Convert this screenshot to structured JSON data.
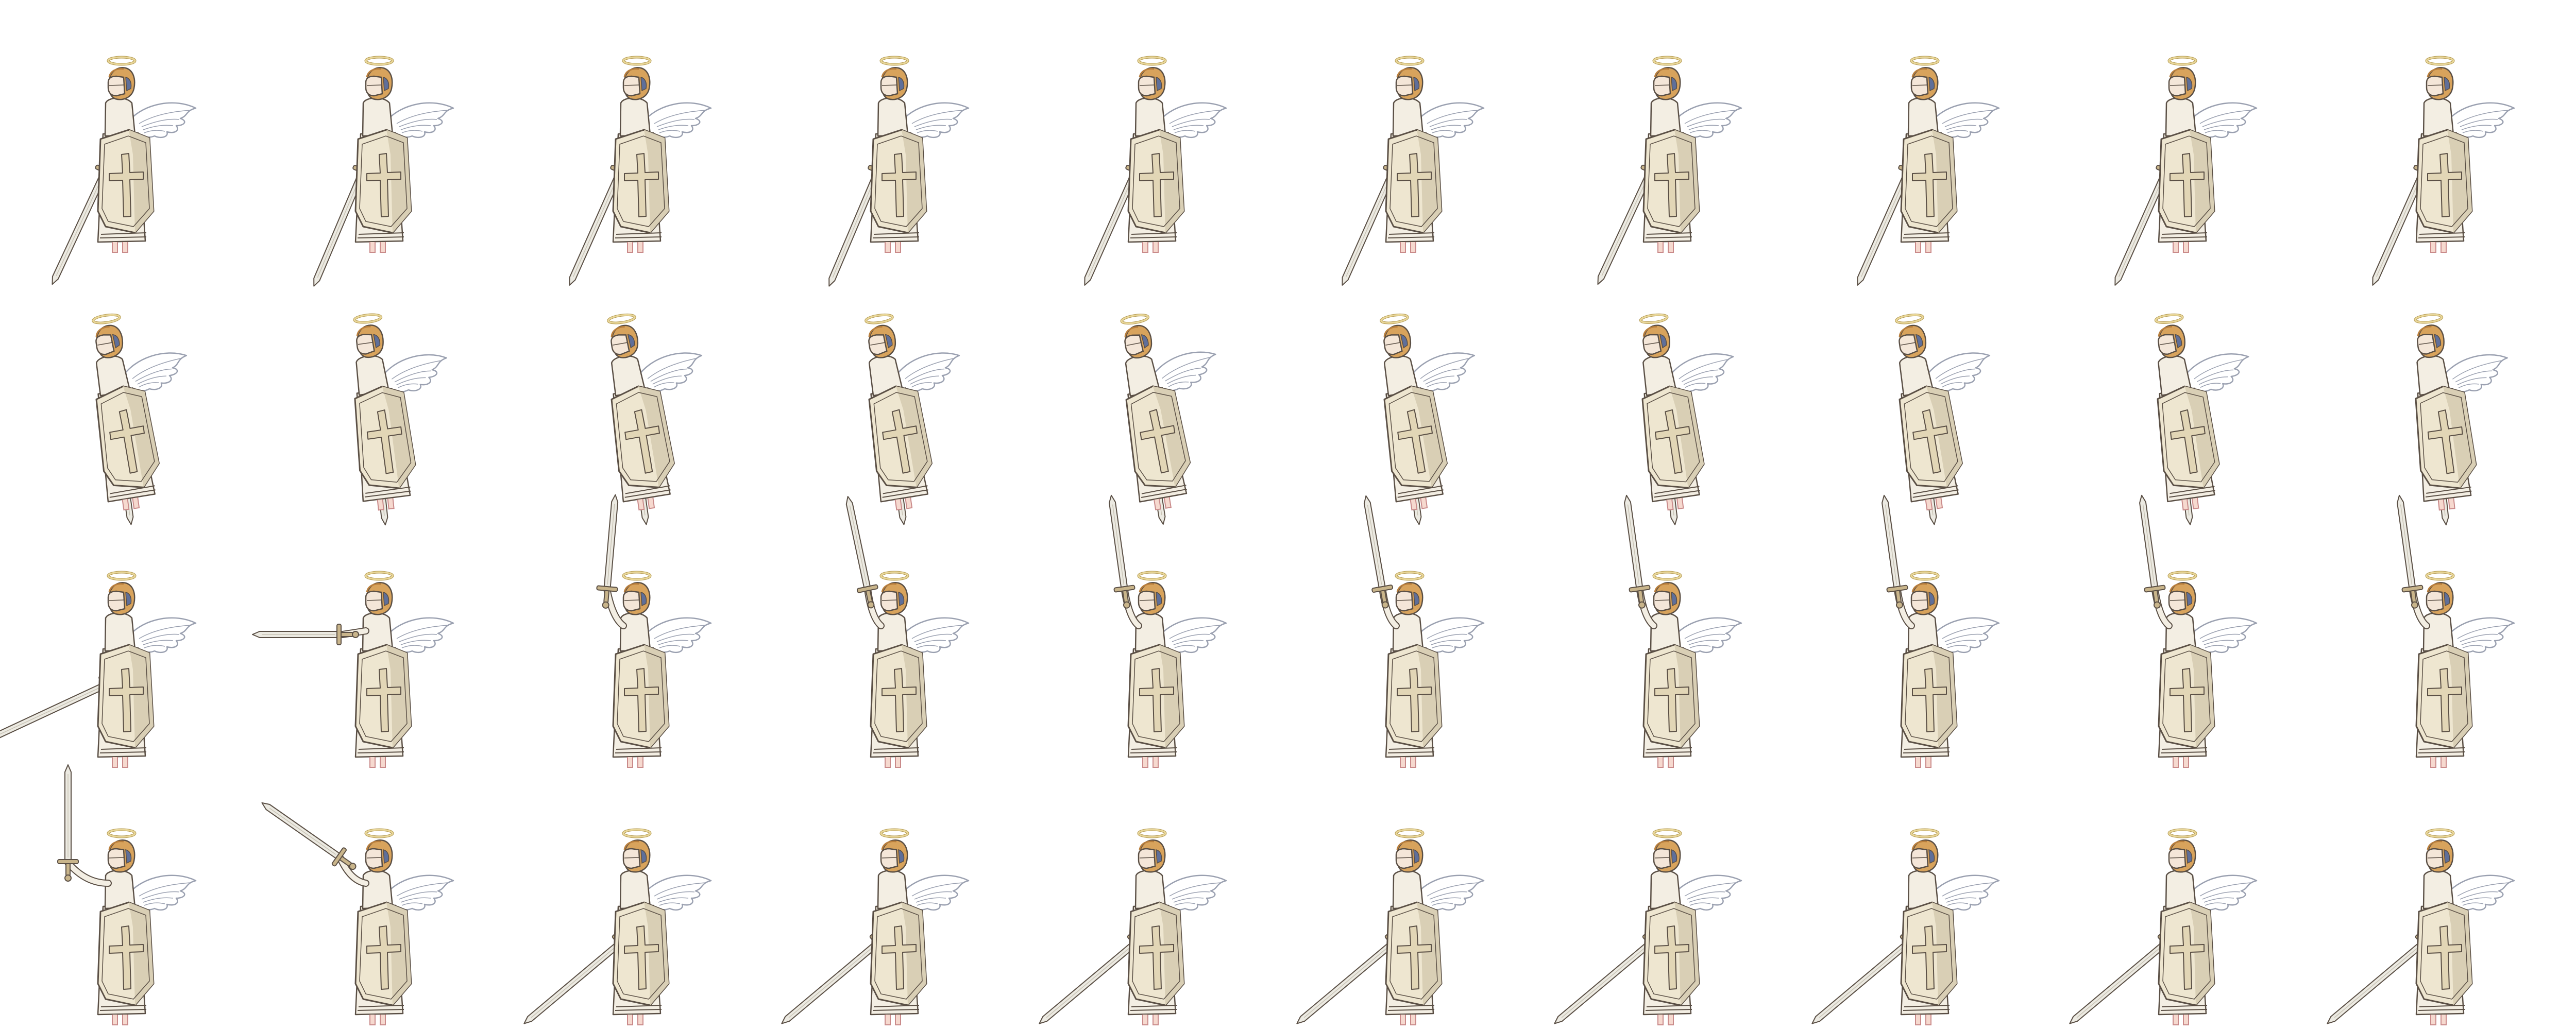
{
  "sprite_sheet": {
    "columns": 10,
    "rows": 4,
    "colors": {
      "background": "#ffffff",
      "outline": "#5a4f45",
      "halo": "#e9d79a",
      "halo_outline": "#b59c55",
      "hair": "#d8a35c",
      "hair_shadow": "#b87e3c",
      "helmet_band": "#5f6f9a",
      "face": "#f4e6d8",
      "skin": "#f6d9cf",
      "shield": "#eee6d0",
      "shield_shade": "#d9cfb5",
      "cross": "#e2d6b6",
      "robe": "#f3eee3",
      "wing": "#ffffff",
      "wing_line": "#9aa0b0",
      "blade": "#eceae2",
      "hilt": "#c9b58b",
      "feet_line": "#c98a8a"
    },
    "rows_frames": [
      {
        "frames": [
          {
            "pose": "sword-low",
            "sword_angle": 205,
            "lean": 0
          },
          {
            "pose": "sword-low",
            "sword_angle": 203,
            "lean": 0
          },
          {
            "pose": "sword-low",
            "sword_angle": 204,
            "lean": 0
          },
          {
            "pose": "sword-low",
            "sword_angle": 203,
            "lean": 0
          },
          {
            "pose": "sword-low",
            "sword_angle": 204,
            "lean": 0
          },
          {
            "pose": "sword-low",
            "sword_angle": 204,
            "lean": 0
          },
          {
            "pose": "sword-low",
            "sword_angle": 205,
            "lean": 0
          },
          {
            "pose": "sword-low",
            "sword_angle": 204,
            "lean": 0
          },
          {
            "pose": "sword-low",
            "sword_angle": 204,
            "lean": 0
          },
          {
            "pose": "sword-low",
            "sword_angle": 204,
            "lean": 0
          }
        ]
      },
      {
        "frames": [
          {
            "pose": "sword-down",
            "sword_angle": 180,
            "lean": -8
          },
          {
            "pose": "sword-down",
            "sword_angle": 180,
            "lean": -6
          },
          {
            "pose": "sword-down",
            "sword_angle": 180,
            "lean": -8
          },
          {
            "pose": "sword-down",
            "sword_angle": 180,
            "lean": -8
          },
          {
            "pose": "sword-down",
            "sword_angle": 180,
            "lean": -9
          },
          {
            "pose": "sword-down",
            "sword_angle": 180,
            "lean": -8
          },
          {
            "pose": "sword-down",
            "sword_angle": 180,
            "lean": -7
          },
          {
            "pose": "sword-down",
            "sword_angle": 180,
            "lean": -8
          },
          {
            "pose": "sword-down",
            "sword_angle": 180,
            "lean": -7
          },
          {
            "pose": "sword-down",
            "sword_angle": 180,
            "lean": -6
          }
        ]
      },
      {
        "frames": [
          {
            "pose": "sword-thrust-low",
            "sword_angle": 245,
            "lean": 0
          },
          {
            "pose": "sword-thrust-side",
            "sword_angle": 270,
            "lean": 0
          },
          {
            "pose": "sword-raised",
            "sword_angle": 5,
            "lean": 0
          },
          {
            "pose": "sword-raised",
            "sword_angle": -12,
            "lean": 0
          },
          {
            "pose": "sword-raised",
            "sword_angle": -8,
            "lean": 0
          },
          {
            "pose": "sword-raised",
            "sword_angle": -10,
            "lean": 0
          },
          {
            "pose": "sword-raised",
            "sword_angle": -8,
            "lean": 0
          },
          {
            "pose": "sword-raised",
            "sword_angle": -8,
            "lean": 0
          },
          {
            "pose": "sword-raised",
            "sword_angle": -8,
            "lean": 0
          },
          {
            "pose": "sword-raised",
            "sword_angle": -8,
            "lean": 0
          }
        ]
      },
      {
        "frames": [
          {
            "pose": "sword-raised-high",
            "sword_angle": 0,
            "lean": 0
          },
          {
            "pose": "sword-swing",
            "sword_angle": -55,
            "lean": 0
          },
          {
            "pose": "sword-low",
            "sword_angle": 230,
            "lean": 0
          },
          {
            "pose": "sword-low",
            "sword_angle": 230,
            "lean": 0
          },
          {
            "pose": "sword-low",
            "sword_angle": 230,
            "lean": 0
          },
          {
            "pose": "sword-low",
            "sword_angle": 230,
            "lean": 0
          },
          {
            "pose": "sword-low",
            "sword_angle": 230,
            "lean": 0
          },
          {
            "pose": "sword-low",
            "sword_angle": 230,
            "lean": 0
          },
          {
            "pose": "sword-low",
            "sword_angle": 230,
            "lean": 0
          },
          {
            "pose": "sword-low",
            "sword_angle": 230,
            "lean": 0
          }
        ]
      }
    ]
  }
}
